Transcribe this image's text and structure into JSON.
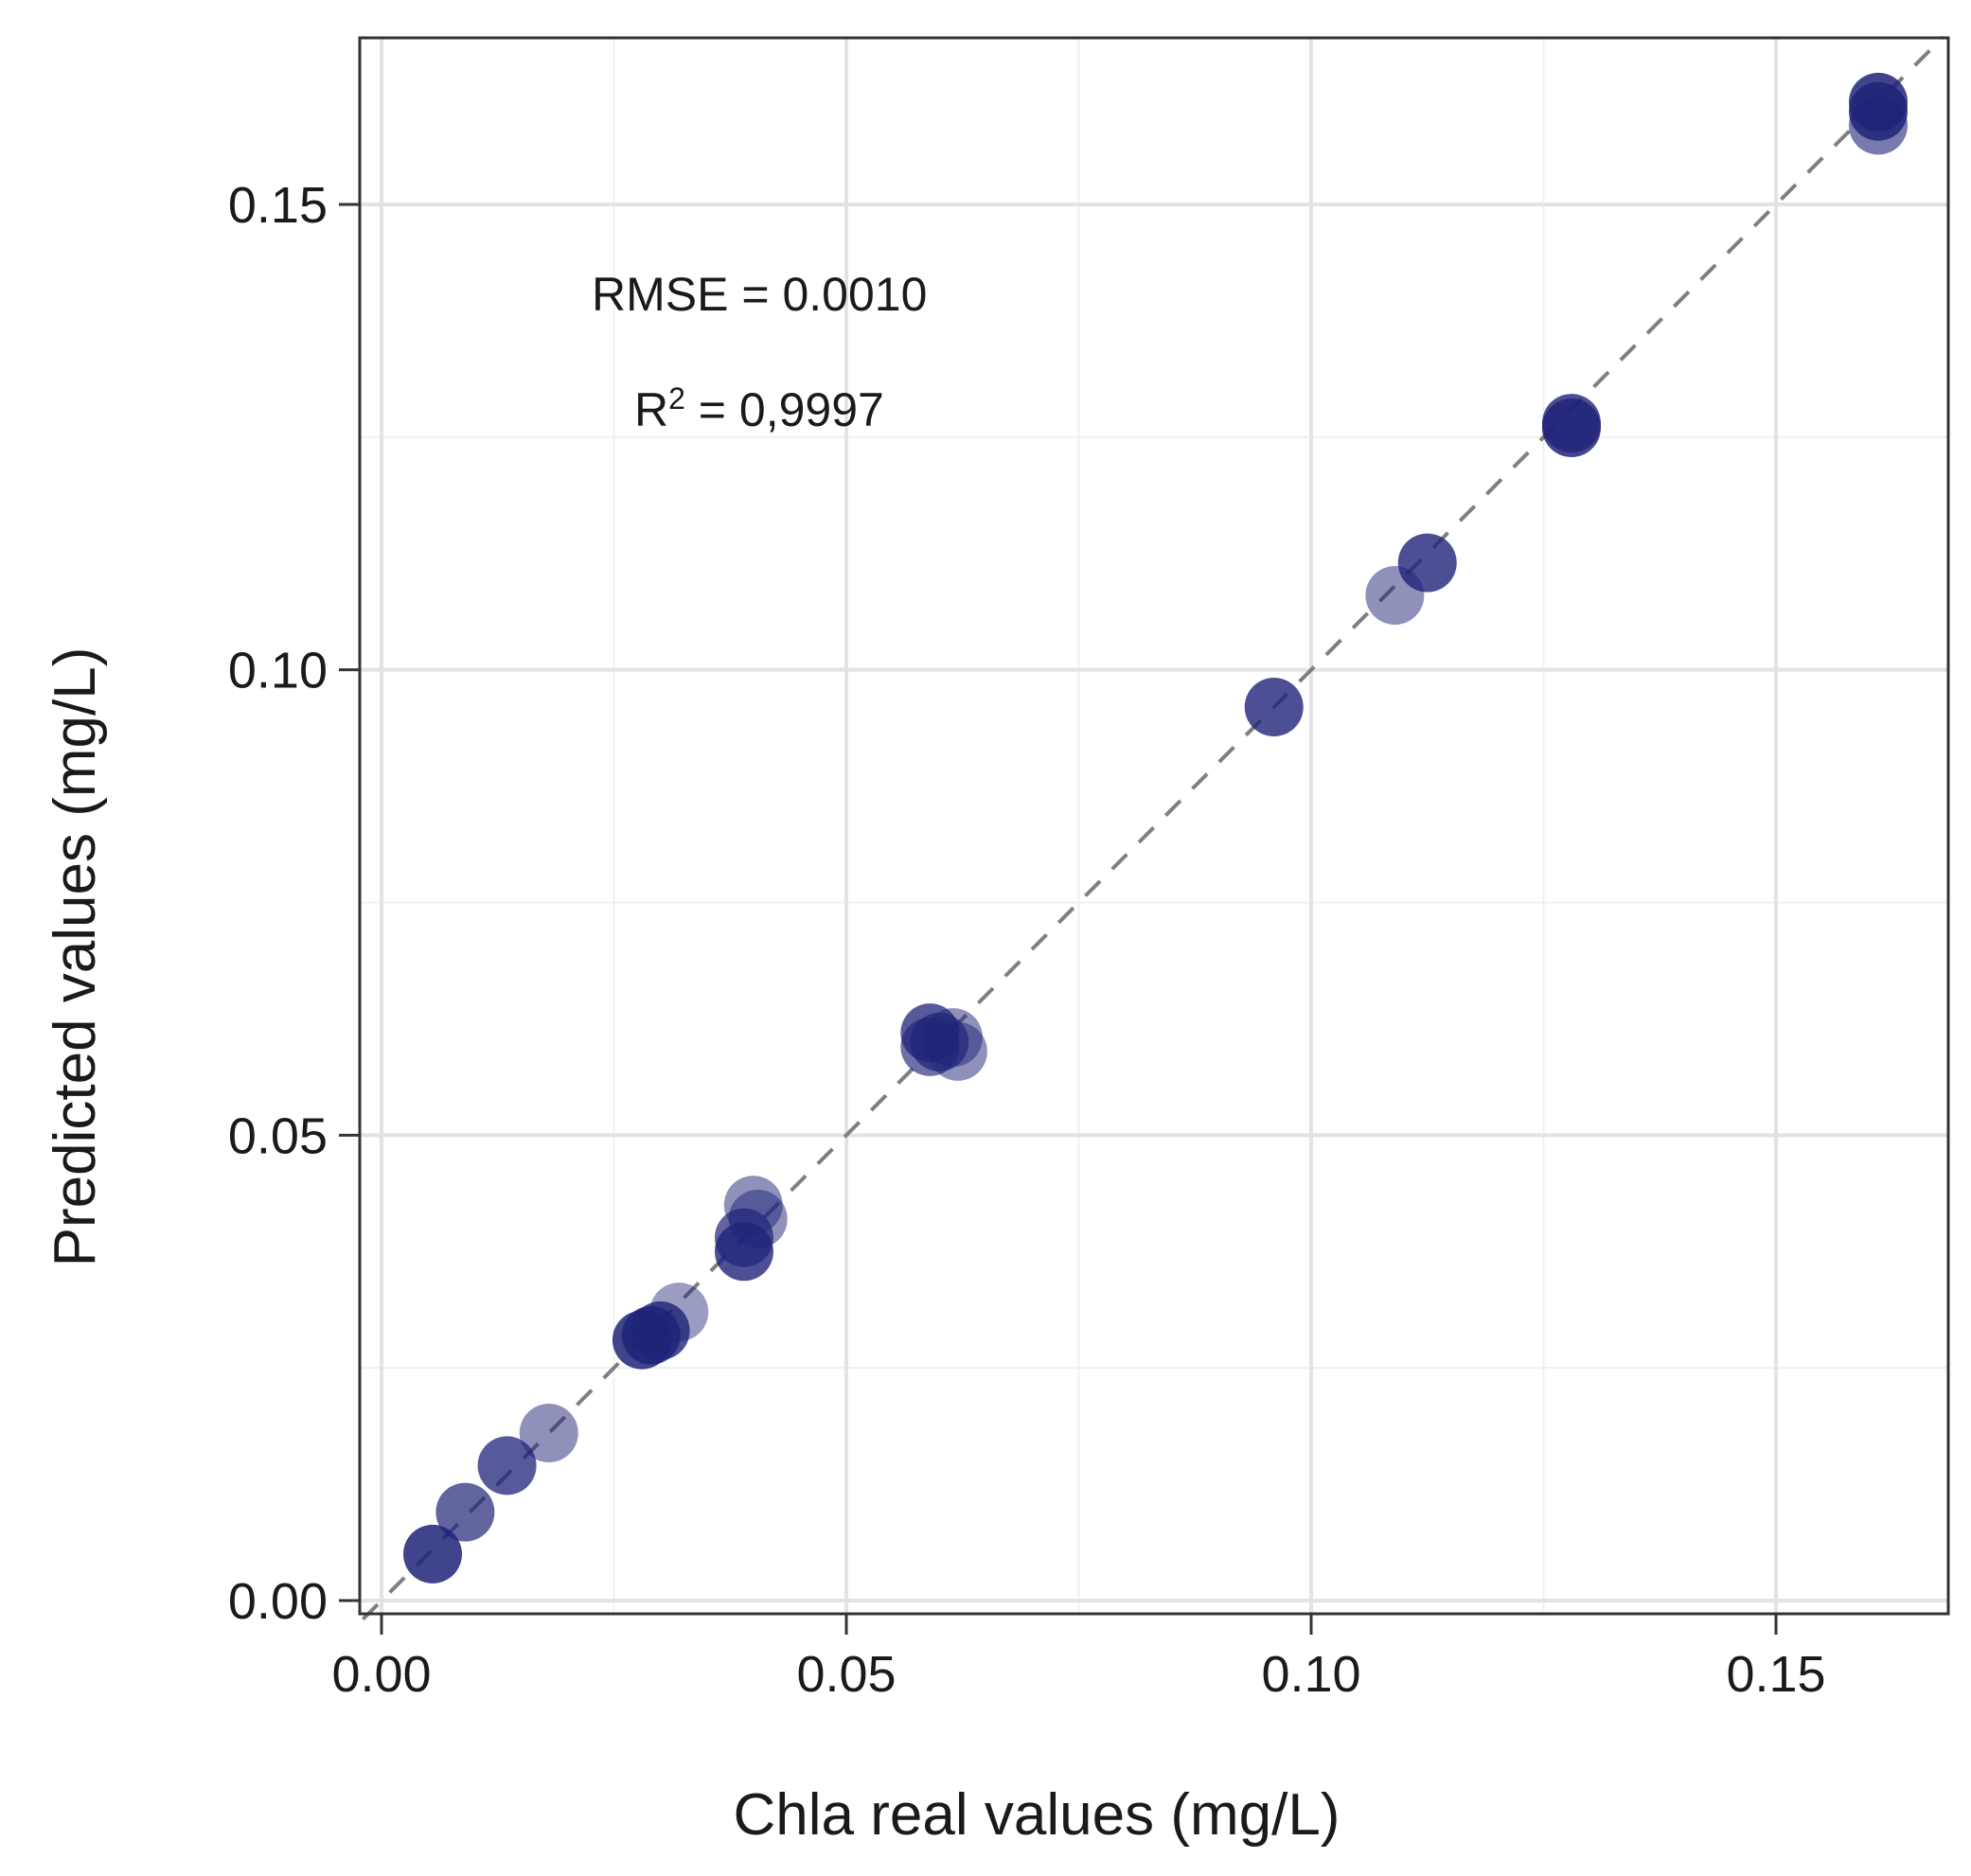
{
  "chart_data": {
    "type": "scatter",
    "xlabel": "Chla real values (mg/L)",
    "ylabel": "Predicted values (mg/L)",
    "xlim": [
      -0.002,
      0.169
    ],
    "ylim": [
      -0.002,
      0.168
    ],
    "x_ticks": [
      0.0,
      0.05,
      0.1,
      0.15
    ],
    "x_tick_labels": [
      "0.00",
      "0.05",
      "0.10",
      "0.15"
    ],
    "y_ticks": [
      0.0,
      0.05,
      0.1,
      0.15
    ],
    "y_tick_labels": [
      "0.00",
      "0.05",
      "0.10",
      "0.15"
    ],
    "grid": true,
    "reference_line": {
      "type": "identity",
      "style": "dashed",
      "color": "#7f7f7f"
    },
    "point_color": "#1f2378",
    "annotations": {
      "rmse": "RMSE = 0.0010",
      "r2_prefix": "R",
      "r2_superscript": "2",
      "r2_value": " = 0,9997"
    },
    "points": [
      {
        "x": 0.0055,
        "y": 0.005,
        "opacity": 0.85
      },
      {
        "x": 0.009,
        "y": 0.0095,
        "opacity": 0.7
      },
      {
        "x": 0.0135,
        "y": 0.0145,
        "opacity": 0.75
      },
      {
        "x": 0.018,
        "y": 0.018,
        "opacity": 0.5
      },
      {
        "x": 0.028,
        "y": 0.028,
        "opacity": 0.85
      },
      {
        "x": 0.029,
        "y": 0.0285,
        "opacity": 0.85
      },
      {
        "x": 0.03,
        "y": 0.029,
        "opacity": 0.8
      },
      {
        "x": 0.032,
        "y": 0.031,
        "opacity": 0.45
      },
      {
        "x": 0.039,
        "y": 0.039,
        "opacity": 0.7
      },
      {
        "x": 0.039,
        "y": 0.0375,
        "opacity": 0.8
      },
      {
        "x": 0.04,
        "y": 0.0425,
        "opacity": 0.5
      },
      {
        "x": 0.0405,
        "y": 0.041,
        "opacity": 0.5
      },
      {
        "x": 0.059,
        "y": 0.0595,
        "opacity": 0.65
      },
      {
        "x": 0.059,
        "y": 0.061,
        "opacity": 0.75
      },
      {
        "x": 0.06,
        "y": 0.06,
        "opacity": 0.7
      },
      {
        "x": 0.0615,
        "y": 0.0605,
        "opacity": 0.5
      },
      {
        "x": 0.062,
        "y": 0.059,
        "opacity": 0.5
      },
      {
        "x": 0.096,
        "y": 0.096,
        "opacity": 0.8
      },
      {
        "x": 0.109,
        "y": 0.108,
        "opacity": 0.5
      },
      {
        "x": 0.1125,
        "y": 0.1115,
        "opacity": 0.8
      },
      {
        "x": 0.128,
        "y": 0.126,
        "opacity": 0.85
      },
      {
        "x": 0.128,
        "y": 0.1265,
        "opacity": 0.8
      },
      {
        "x": 0.161,
        "y": 0.1585,
        "opacity": 0.6
      },
      {
        "x": 0.161,
        "y": 0.16,
        "opacity": 0.85
      },
      {
        "x": 0.161,
        "y": 0.161,
        "opacity": 0.85
      }
    ]
  }
}
